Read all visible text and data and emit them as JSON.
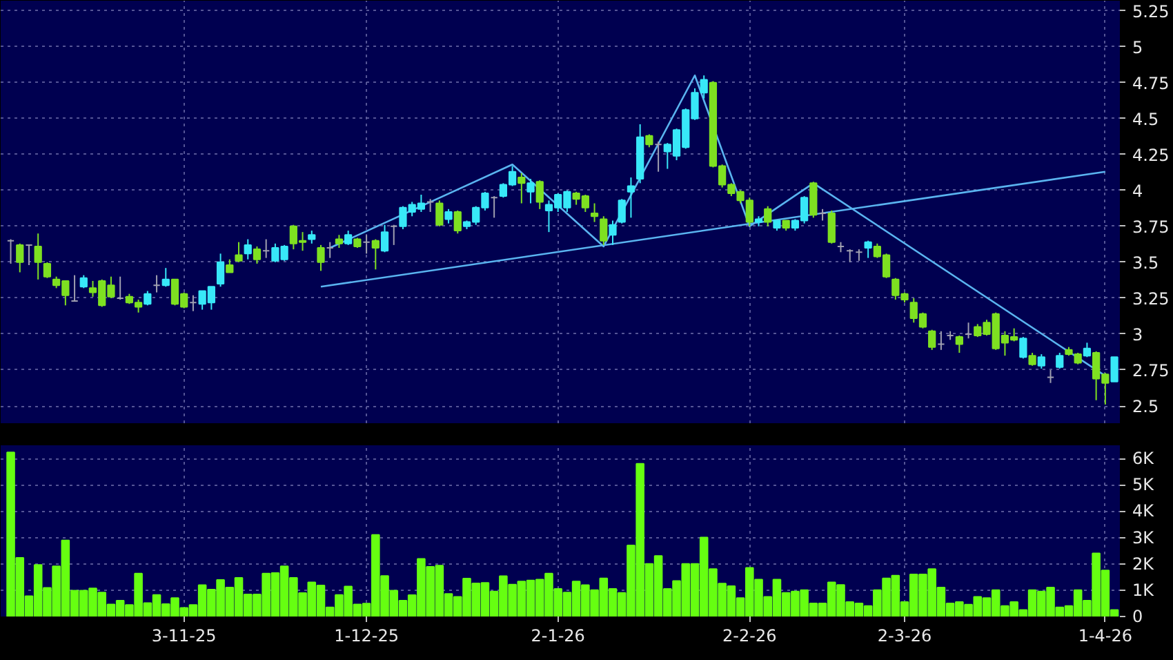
{
  "chart_data": [
    {
      "type": "candlestick",
      "grid": true,
      "tick_labels": "y",
      "ylim": [
        2.38,
        5.32
      ],
      "yticks": [
        2.5,
        2.75,
        3,
        3.25,
        3.5,
        3.75,
        4,
        4.25,
        4.5,
        4.75,
        5,
        5.25
      ],
      "categories": [
        null,
        null,
        null,
        null,
        null,
        null,
        null,
        null,
        null,
        null,
        null,
        null,
        null,
        null,
        null,
        null,
        null,
        null,
        null,
        null,
        null,
        null,
        null,
        null,
        null,
        null,
        null,
        null,
        null,
        null,
        null,
        null,
        null,
        null,
        null,
        null,
        null,
        null,
        null,
        null,
        null,
        null,
        null,
        null,
        null,
        null,
        null,
        null,
        null,
        null,
        null,
        null,
        null,
        null,
        null,
        null,
        null,
        null,
        null,
        null,
        null,
        null,
        null,
        null,
        null,
        null,
        null,
        null,
        null,
        null,
        null,
        null,
        null,
        null,
        null,
        null,
        null,
        null,
        null,
        null,
        null,
        null,
        null,
        null,
        null,
        null,
        null,
        null,
        null,
        null,
        null,
        null,
        null,
        null,
        null,
        null,
        null,
        null,
        null,
        null,
        null,
        null,
        null,
        null,
        null,
        null,
        null,
        null,
        null,
        null,
        null,
        null,
        null,
        null,
        null,
        null,
        null,
        null,
        null,
        null,
        null,
        null
      ],
      "ohlc": [
        [
          3.65,
          3.66,
          3.49,
          3.65
        ],
        [
          3.62,
          3.63,
          3.43,
          3.5
        ],
        [
          3.62,
          3.62,
          3.48,
          3.62
        ],
        [
          3.61,
          3.7,
          3.38,
          3.5
        ],
        [
          3.49,
          3.5,
          3.39,
          3.4
        ],
        [
          3.38,
          3.4,
          3.32,
          3.34
        ],
        [
          3.37,
          3.37,
          3.2,
          3.27
        ],
        [
          3.23,
          3.41,
          3.23,
          3.23
        ],
        [
          3.33,
          3.41,
          3.32,
          3.39
        ],
        [
          3.32,
          3.37,
          3.26,
          3.29
        ],
        [
          3.37,
          3.38,
          3.19,
          3.2
        ],
        [
          3.34,
          3.4,
          3.25,
          3.26
        ],
        [
          3.25,
          3.4,
          3.24,
          3.25
        ],
        [
          3.26,
          3.28,
          3.21,
          3.22
        ],
        [
          3.22,
          3.24,
          3.15,
          3.19
        ],
        [
          3.21,
          3.3,
          3.2,
          3.28
        ],
        [
          3.34,
          3.41,
          3.29,
          3.34
        ],
        [
          3.34,
          3.46,
          3.33,
          3.38
        ],
        [
          3.38,
          3.38,
          3.2,
          3.21
        ],
        [
          3.28,
          3.29,
          3.18,
          3.19
        ],
        [
          3.22,
          3.27,
          3.16,
          3.22
        ],
        [
          3.21,
          3.3,
          3.17,
          3.3
        ],
        [
          3.22,
          3.33,
          3.17,
          3.33
        ],
        [
          3.35,
          3.56,
          3.33,
          3.5
        ],
        [
          3.48,
          3.52,
          3.43,
          3.43
        ],
        [
          3.55,
          3.64,
          3.5,
          3.51
        ],
        [
          3.56,
          3.66,
          3.52,
          3.62
        ],
        [
          3.59,
          3.61,
          3.49,
          3.52
        ],
        [
          3.58,
          3.66,
          3.53,
          3.58
        ],
        [
          3.51,
          3.63,
          3.5,
          3.6
        ],
        [
          3.52,
          3.62,
          3.51,
          3.61
        ],
        [
          3.75,
          3.76,
          3.59,
          3.63
        ],
        [
          3.65,
          3.71,
          3.58,
          3.64
        ],
        [
          3.66,
          3.72,
          3.63,
          3.69
        ],
        [
          3.6,
          3.62,
          3.44,
          3.5
        ],
        [
          3.6,
          3.64,
          3.53,
          3.6
        ],
        [
          3.66,
          3.69,
          3.6,
          3.63
        ],
        [
          3.63,
          3.72,
          3.62,
          3.69
        ],
        [
          3.66,
          3.67,
          3.6,
          3.61
        ],
        [
          3.64,
          3.69,
          3.56,
          3.64
        ],
        [
          3.65,
          3.66,
          3.45,
          3.6
        ],
        [
          3.58,
          3.76,
          3.57,
          3.71
        ],
        [
          3.75,
          3.76,
          3.62,
          3.75
        ],
        [
          3.75,
          3.89,
          3.73,
          3.88
        ],
        [
          3.85,
          3.92,
          3.82,
          3.9
        ],
        [
          3.87,
          3.97,
          3.85,
          3.91
        ],
        [
          3.92,
          3.94,
          3.85,
          3.92
        ],
        [
          3.91,
          3.93,
          3.75,
          3.76
        ],
        [
          3.8,
          3.87,
          3.77,
          3.85
        ],
        [
          3.85,
          3.86,
          3.7,
          3.72
        ],
        [
          3.75,
          3.79,
          3.73,
          3.78
        ],
        [
          3.78,
          3.89,
          3.76,
          3.88
        ],
        [
          3.88,
          3.99,
          3.86,
          3.98
        ],
        [
          3.95,
          3.96,
          3.81,
          3.95
        ],
        [
          3.96,
          4.05,
          3.95,
          4.04
        ],
        [
          4.04,
          4.17,
          4.03,
          4.13
        ],
        [
          4.09,
          4.12,
          3.91,
          4.05
        ],
        [
          3.99,
          4.08,
          3.91,
          4.05
        ],
        [
          4.06,
          4.07,
          3.87,
          3.92
        ],
        [
          3.86,
          3.93,
          3.71,
          3.9
        ],
        [
          3.88,
          3.98,
          3.85,
          3.97
        ],
        [
          3.88,
          4.0,
          3.85,
          3.99
        ],
        [
          3.98,
          3.99,
          3.9,
          3.94
        ],
        [
          3.96,
          3.97,
          3.85,
          3.88
        ],
        [
          3.84,
          3.91,
          3.78,
          3.82
        ],
        [
          3.8,
          3.82,
          3.62,
          3.65
        ],
        [
          3.69,
          3.79,
          3.62,
          3.76
        ],
        [
          3.78,
          3.94,
          3.77,
          3.93
        ],
        [
          3.99,
          4.09,
          3.81,
          4.03
        ],
        [
          4.08,
          4.46,
          4.05,
          4.37
        ],
        [
          4.38,
          4.39,
          4.3,
          4.32
        ],
        [
          4.32,
          4.34,
          4.13,
          4.32
        ],
        [
          4.27,
          4.33,
          4.15,
          4.32
        ],
        [
          4.24,
          4.43,
          4.21,
          4.42
        ],
        [
          4.3,
          4.57,
          4.29,
          4.56
        ],
        [
          4.5,
          4.71,
          4.49,
          4.68
        ],
        [
          4.68,
          4.8,
          4.64,
          4.77
        ],
        [
          4.75,
          4.76,
          4.16,
          4.17
        ],
        [
          4.17,
          4.18,
          4.02,
          4.04
        ],
        [
          4.04,
          4.05,
          3.96,
          3.98
        ],
        [
          3.99,
          4.0,
          3.91,
          3.93
        ],
        [
          3.93,
          3.95,
          3.75,
          3.78
        ],
        [
          3.78,
          3.82,
          3.75,
          3.8
        ],
        [
          3.87,
          3.89,
          3.75,
          3.78
        ],
        [
          3.74,
          3.79,
          3.72,
          3.79
        ],
        [
          3.79,
          3.79,
          3.72,
          3.74
        ],
        [
          3.74,
          3.8,
          3.72,
          3.79
        ],
        [
          3.79,
          3.96,
          3.77,
          3.95
        ],
        [
          4.05,
          4.06,
          3.81,
          3.83
        ],
        [
          3.84,
          3.87,
          3.79,
          3.84
        ],
        [
          3.84,
          3.86,
          3.63,
          3.64
        ],
        [
          3.61,
          3.64,
          3.57,
          3.61
        ],
        [
          3.58,
          3.59,
          3.5,
          3.58
        ],
        [
          3.57,
          3.59,
          3.51,
          3.57
        ],
        [
          3.6,
          3.65,
          3.53,
          3.64
        ],
        [
          3.61,
          3.63,
          3.53,
          3.54
        ],
        [
          3.55,
          3.56,
          3.39,
          3.4
        ],
        [
          3.38,
          3.39,
          3.24,
          3.27
        ],
        [
          3.28,
          3.29,
          3.22,
          3.24
        ],
        [
          3.22,
          3.25,
          3.08,
          3.11
        ],
        [
          3.14,
          3.15,
          3.04,
          3.05
        ],
        [
          3.02,
          3.03,
          2.89,
          2.91
        ],
        [
          2.93,
          3.02,
          2.89,
          2.93
        ],
        [
          2.99,
          3.02,
          2.96,
          2.99
        ],
        [
          2.98,
          2.99,
          2.87,
          2.93
        ],
        [
          3.0,
          3.08,
          2.97,
          3.0
        ],
        [
          3.05,
          3.07,
          2.98,
          2.99
        ],
        [
          3.08,
          3.1,
          2.99,
          3.0
        ],
        [
          3.14,
          3.15,
          2.89,
          2.9
        ],
        [
          2.99,
          3.02,
          2.85,
          2.94
        ],
        [
          2.98,
          3.04,
          2.95,
          2.96
        ],
        [
          2.84,
          2.98,
          2.83,
          2.97
        ],
        [
          2.85,
          2.87,
          2.78,
          2.79
        ],
        [
          2.78,
          2.86,
          2.76,
          2.84
        ],
        [
          2.7,
          2.75,
          2.66,
          2.7
        ],
        [
          2.77,
          2.87,
          2.76,
          2.85
        ],
        [
          2.89,
          2.91,
          2.85,
          2.86
        ],
        [
          2.86,
          2.87,
          2.79,
          2.8
        ],
        [
          2.85,
          2.94,
          2.84,
          2.9
        ],
        [
          2.87,
          2.88,
          2.54,
          2.69
        ],
        [
          2.72,
          2.73,
          2.51,
          2.66
        ],
        [
          2.67,
          2.84,
          2.67,
          2.84
        ]
      ],
      "colors": [
        "#a0a0b0",
        "#7ee021",
        "#a0a0b0",
        "#7ee021",
        "#7ee021",
        "#7ee021",
        "#7ee021",
        "#a0a0b0",
        "#38e8f8",
        "#7ee021",
        "#7ee021",
        "#7ee021",
        "#a0a0b0",
        "#7ee021",
        "#7ee021",
        "#38e8f8",
        "#a0a0b0",
        "#38e8f8",
        "#7ee021",
        "#7ee021",
        "#a0a0b0",
        "#38e8f8",
        "#38e8f8",
        "#38e8f8",
        "#7ee021",
        "#7ee021",
        "#38e8f8",
        "#7ee021",
        "#a0a0b0",
        "#38e8f8",
        "#38e8f8",
        "#7ee021",
        "#7ee021",
        "#38e8f8",
        "#7ee021",
        "#a0a0b0",
        "#7ee021",
        "#38e8f8",
        "#7ee021",
        "#a0a0b0",
        "#7ee021",
        "#38e8f8",
        "#a0a0b0",
        "#38e8f8",
        "#38e8f8",
        "#38e8f8",
        "#a0a0b0",
        "#7ee021",
        "#38e8f8",
        "#7ee021",
        "#38e8f8",
        "#38e8f8",
        "#38e8f8",
        "#a0a0b0",
        "#38e8f8",
        "#38e8f8",
        "#7ee021",
        "#38e8f8",
        "#7ee021",
        "#38e8f8",
        "#38e8f8",
        "#38e8f8",
        "#7ee021",
        "#7ee021",
        "#7ee021",
        "#7ee021",
        "#38e8f8",
        "#38e8f8",
        "#38e8f8",
        "#38e8f8",
        "#7ee021",
        "#a0a0b0",
        "#38e8f8",
        "#38e8f8",
        "#38e8f8",
        "#38e8f8",
        "#38e8f8",
        "#7ee021",
        "#7ee021",
        "#7ee021",
        "#7ee021",
        "#7ee021",
        "#38e8f8",
        "#7ee021",
        "#38e8f8",
        "#7ee021",
        "#38e8f8",
        "#38e8f8",
        "#7ee021",
        "#a0a0b0",
        "#7ee021",
        "#a0a0b0",
        "#a0a0b0",
        "#a0a0b0",
        "#38e8f8",
        "#7ee021",
        "#7ee021",
        "#7ee021",
        "#7ee021",
        "#7ee021",
        "#7ee021",
        "#7ee021",
        "#a0a0b0",
        "#a0a0b0",
        "#7ee021",
        "#a0a0b0",
        "#7ee021",
        "#7ee021",
        "#7ee021",
        "#7ee021",
        "#7ee021",
        "#38e8f8",
        "#7ee021",
        "#38e8f8",
        "#a0a0b0",
        "#38e8f8",
        "#7ee021",
        "#7ee021",
        "#38e8f8",
        "#7ee021",
        "#7ee021",
        "#38e8f8"
      ],
      "series": [
        {
          "type": "line",
          "color": "#5ab4f0",
          "values": [
            null,
            null,
            null,
            null,
            null,
            null,
            null,
            null,
            null,
            null,
            null,
            null,
            null,
            null,
            null,
            null,
            null,
            null,
            null,
            null,
            null,
            null,
            null,
            null,
            null,
            null,
            null,
            null,
            null,
            null,
            null,
            null,
            null,
            null,
            3.33,
            null,
            null,
            null,
            null,
            null,
            null,
            null,
            null,
            null,
            null,
            null,
            null,
            null,
            null,
            null,
            null,
            null,
            null,
            null,
            null,
            null,
            null,
            null,
            null,
            null,
            null,
            null,
            null,
            null,
            null,
            null,
            null,
            null,
            null,
            null,
            null,
            null,
            null,
            null,
            null,
            null,
            null,
            null,
            null,
            null,
            null,
            null,
            null,
            null,
            null,
            null,
            null,
            null,
            null,
            null,
            null,
            null,
            null,
            null,
            null,
            null,
            null,
            null,
            null,
            null,
            null,
            null,
            null,
            null,
            null,
            null,
            null,
            null,
            null,
            null,
            null,
            null,
            null,
            null,
            null,
            null,
            null,
            null,
            null,
            null,
            4.13,
            null
          ]
        },
        {
          "type": "line",
          "color": "#5ab4f0",
          "values": [
            null,
            null,
            null,
            null,
            null,
            null,
            null,
            null,
            null,
            null,
            null,
            null,
            null,
            null,
            null,
            null,
            null,
            null,
            null,
            null,
            null,
            null,
            null,
            null,
            null,
            null,
            null,
            null,
            null,
            null,
            null,
            null,
            null,
            null,
            null,
            3.6,
            null,
            null,
            null,
            null,
            null,
            null,
            null,
            null,
            null,
            null,
            null,
            null,
            null,
            null,
            null,
            null,
            null,
            null,
            null,
            4.18,
            null,
            null,
            null,
            null,
            null,
            null,
            null,
            null,
            null,
            3.61,
            null,
            null,
            null,
            null,
            null,
            null,
            null,
            null,
            null,
            4.8,
            null,
            null,
            null,
            null,
            null,
            3.75,
            null,
            null,
            null,
            null,
            null,
            null,
            4.05,
            null,
            null,
            null,
            null,
            null,
            null,
            null,
            null,
            null,
            null,
            null,
            null,
            null,
            null,
            null,
            null,
            null,
            null,
            null,
            null,
            null,
            null,
            null,
            null,
            null,
            null,
            null,
            null,
            null,
            null,
            null,
            2.71,
            null
          ]
        }
      ]
    },
    {
      "type": "bar",
      "grid": true,
      "color": "#66ff11",
      "ylim": [
        0,
        6500
      ],
      "yticks": [
        0,
        {
          "value": 1000,
          "label": "1K"
        },
        {
          "value": 2000,
          "label": "2K"
        },
        {
          "value": 3000,
          "label": "3K"
        },
        {
          "value": 4000,
          "label": "4K"
        },
        {
          "value": 5000,
          "label": "5K"
        },
        {
          "value": 6000,
          "label": "6K"
        }
      ],
      "categories": [
        null,
        null,
        null,
        null,
        null,
        null,
        null,
        null,
        null,
        null,
        null,
        null,
        null,
        null,
        null,
        null,
        null,
        null,
        null,
        "3-11-25",
        null,
        null,
        null,
        null,
        null,
        null,
        null,
        null,
        null,
        null,
        null,
        null,
        null,
        null,
        null,
        null,
        null,
        null,
        null,
        "1-12-25",
        null,
        null,
        null,
        null,
        null,
        null,
        null,
        null,
        null,
        null,
        null,
        null,
        null,
        null,
        null,
        null,
        null,
        null,
        null,
        null,
        "2-1-26",
        null,
        null,
        null,
        null,
        null,
        null,
        null,
        null,
        null,
        null,
        null,
        null,
        null,
        null,
        null,
        null,
        null,
        null,
        null,
        null,
        "2-2-26",
        null,
        null,
        null,
        null,
        null,
        null,
        null,
        null,
        null,
        null,
        null,
        null,
        null,
        null,
        null,
        null,
        "2-3-26",
        null,
        null,
        null,
        null,
        null,
        null,
        null,
        null,
        null,
        null,
        null,
        null,
        null,
        null,
        null,
        null,
        null,
        null,
        null,
        null,
        null,
        "1-4-26",
        null
      ],
      "values": [
        6230,
        2230,
        770,
        1960,
        1090,
        1910,
        2890,
        980,
        980,
        1070,
        910,
        460,
        600,
        440,
        1630,
        510,
        820,
        470,
        700,
        330,
        440,
        1190,
        1020,
        1390,
        1100,
        1470,
        840,
        840,
        1630,
        1650,
        1910,
        1470,
        890,
        1300,
        1180,
        350,
        820,
        1140,
        460,
        490,
        3100,
        1540,
        980,
        600,
        810,
        2190,
        1890,
        1930,
        860,
        750,
        1440,
        1260,
        1280,
        950,
        1530,
        1210,
        1330,
        1370,
        1400,
        1630,
        1050,
        910,
        1330,
        1190,
        1000,
        1450,
        1050,
        900,
        2700,
        5800,
        2000,
        2300,
        1050,
        1350,
        2000,
        2000,
        3000,
        1800,
        1250,
        1150,
        700,
        1850,
        1400,
        750,
        1400,
        900,
        950,
        1000,
        500,
        500,
        1300,
        1200,
        550,
        500,
        400,
        1000,
        1450,
        1550,
        550,
        1600,
        1600,
        1800,
        1100,
        500,
        550,
        450,
        750,
        700,
        1000,
        400,
        550,
        250,
        1000,
        950,
        1100,
        350,
        400,
        1000,
        600,
        2400,
        1750,
        250
      ]
    }
  ]
}
